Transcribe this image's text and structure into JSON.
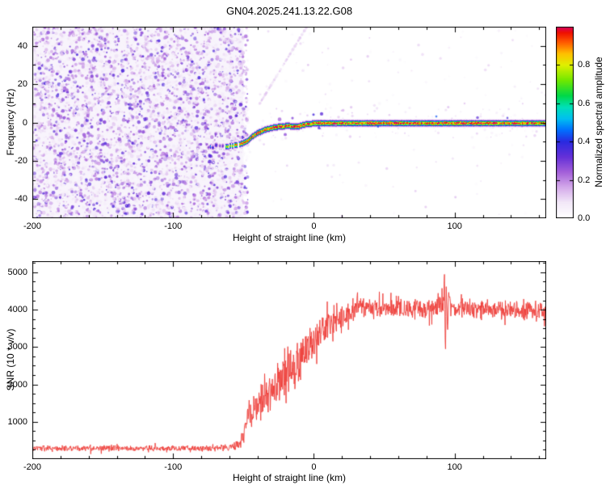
{
  "title": "GN04.2025.241.13.22.G08",
  "chart_data": [
    {
      "type": "heatmap",
      "name": "spectrogram",
      "xlabel": "Height of straight line (km)",
      "ylabel": "Frequency (Hz)",
      "xlim": [
        -200,
        165
      ],
      "ylim": [
        -50,
        50
      ],
      "xticks": [
        -200,
        -100,
        0,
        100
      ],
      "yticks": [
        -40,
        -20,
        0,
        20,
        40
      ],
      "grid": false,
      "background_noise": {
        "description": "dense pale-purple speckle noise filling the panel left of about -50 km",
        "x_range": [
          -200,
          -50
        ],
        "freq_range": [
          -50,
          50
        ],
        "amplitude_range": [
          0.03,
          0.35
        ]
      },
      "signal_trace": {
        "description": "narrow high-amplitude carrier: scattered onset dots near -13 Hz rising to 0 Hz, then flat to right edge; red/yellow core, green-cyan-blue fringe",
        "onset_scatter_x": [
          -78,
          -63
        ],
        "points_columns": [
          "x_km",
          "freq_hz",
          "amp"
        ],
        "points": [
          [
            -78,
            -13,
            0.45
          ],
          [
            -72,
            -12.6,
            0.55
          ],
          [
            -66,
            -12.4,
            0.7
          ],
          [
            -62,
            -12.4,
            0.82
          ],
          [
            -58,
            -12,
            0.88
          ],
          [
            -54,
            -11.4,
            0.92
          ],
          [
            -50,
            -10.4,
            0.95
          ],
          [
            -47,
            -9.2,
            0.96
          ],
          [
            -44,
            -7.2,
            1
          ],
          [
            -41,
            -5.6,
            1
          ],
          [
            -38,
            -4.6,
            1
          ],
          [
            -35,
            -3.6,
            1
          ],
          [
            -31,
            -2.8,
            1
          ],
          [
            -27,
            -2.2,
            1
          ],
          [
            -23,
            -1.8,
            1
          ],
          [
            -19,
            -1.6,
            1
          ],
          [
            -15,
            -1.8,
            1
          ],
          [
            -12,
            -2.1,
            1
          ],
          [
            -9,
            -1.3,
            1
          ],
          [
            -6,
            -0.8,
            1
          ],
          [
            -3,
            -0.5,
            1
          ],
          [
            0,
            -0.3,
            1
          ],
          [
            4,
            -0.1,
            1
          ],
          [
            10,
            0,
            1
          ],
          [
            165,
            0,
            1
          ]
        ]
      },
      "artifact_streak": {
        "x1": -40,
        "freq1": 8,
        "x2": -5,
        "freq2": 50,
        "amp": 0.12
      },
      "colorbar": {
        "label": "Normalized spectral amplitude",
        "range": [
          0,
          1
        ],
        "ticks": [
          0,
          0.2,
          0.4,
          0.6,
          0.8
        ],
        "stops": [
          [
            0.0,
            "#ffffff"
          ],
          [
            0.08,
            "#f2e8f8"
          ],
          [
            0.16,
            "#d4a9ea"
          ],
          [
            0.24,
            "#a35fd9"
          ],
          [
            0.32,
            "#6430d8"
          ],
          [
            0.4,
            "#2a2ae0"
          ],
          [
            0.46,
            "#0070ff"
          ],
          [
            0.52,
            "#00c0f0"
          ],
          [
            0.58,
            "#00e0b8"
          ],
          [
            0.64,
            "#00d848"
          ],
          [
            0.72,
            "#70e800"
          ],
          [
            0.8,
            "#dff000"
          ],
          [
            0.86,
            "#ffc000"
          ],
          [
            0.92,
            "#ff5a00"
          ],
          [
            0.97,
            "#ef1000"
          ],
          [
            1.0,
            "#d8005f"
          ]
        ]
      }
    },
    {
      "type": "line",
      "name": "snr",
      "xlabel": "Height of straight line (km)",
      "ylabel": "SNR (10 * v/v)",
      "xlim": [
        -200,
        165
      ],
      "ylim": [
        0,
        5300
      ],
      "xticks": [
        -200,
        -100,
        0,
        100
      ],
      "yticks": [
        1000,
        2000,
        3000,
        4000,
        5000
      ],
      "line_color": "#ee3f3b",
      "description": "noisy red SNR trace: flat ~300 until -55 km, strong oscillating rise -50..+25 km, plateau ~4000 with spike to ~5050 near +93 km",
      "envelope_columns": [
        "x_km",
        "mean",
        "half_range"
      ],
      "envelope": [
        [
          -200,
          290,
          85
        ],
        [
          -170,
          290,
          85
        ],
        [
          -140,
          295,
          85
        ],
        [
          -110,
          290,
          85
        ],
        [
          -85,
          290,
          85
        ],
        [
          -70,
          295,
          90
        ],
        [
          -62,
          300,
          95
        ],
        [
          -57,
          330,
          110
        ],
        [
          -53,
          420,
          170
        ],
        [
          -50,
          650,
          260
        ],
        [
          -48,
          1050,
          320
        ],
        [
          -46,
          1350,
          360
        ],
        [
          -44,
          1100,
          380
        ],
        [
          -42,
          1450,
          420
        ],
        [
          -40,
          1200,
          450
        ],
        [
          -38,
          1550,
          480
        ],
        [
          -35,
          1850,
          520
        ],
        [
          -32,
          1650,
          560
        ],
        [
          -29,
          2050,
          580
        ],
        [
          -26,
          1850,
          620
        ],
        [
          -23,
          2250,
          620
        ],
        [
          -20,
          2050,
          660
        ],
        [
          -17,
          2450,
          640
        ],
        [
          -14,
          2250,
          680
        ],
        [
          -11,
          2650,
          640
        ],
        [
          -8,
          2800,
          600
        ],
        [
          -5,
          2950,
          560
        ],
        [
          -2,
          3100,
          520
        ],
        [
          2,
          3300,
          470
        ],
        [
          6,
          3450,
          430
        ],
        [
          10,
          3550,
          410
        ],
        [
          14,
          3650,
          390
        ],
        [
          18,
          3750,
          360
        ],
        [
          22,
          3850,
          330
        ],
        [
          27,
          3950,
          300
        ],
        [
          32,
          4050,
          280
        ],
        [
          40,
          4050,
          270
        ],
        [
          48,
          4000,
          270
        ],
        [
          56,
          4050,
          270
        ],
        [
          64,
          4000,
          270
        ],
        [
          72,
          4050,
          275
        ],
        [
          80,
          4000,
          275
        ],
        [
          86,
          4050,
          280
        ],
        [
          90,
          4100,
          300
        ],
        [
          92,
          4300,
          400
        ],
        [
          92.7,
          5050,
          120
        ],
        [
          93.4,
          2750,
          170
        ],
        [
          94.1,
          4650,
          190
        ],
        [
          94.8,
          3300,
          250
        ],
        [
          95.6,
          4300,
          320
        ],
        [
          97,
          4050,
          290
        ],
        [
          103,
          4000,
          275
        ],
        [
          110,
          4050,
          270
        ],
        [
          118,
          3990,
          270
        ],
        [
          126,
          4040,
          270
        ],
        [
          134,
          3970,
          270
        ],
        [
          142,
          4030,
          270
        ],
        [
          150,
          3960,
          270
        ],
        [
          158,
          4010,
          270
        ],
        [
          165,
          3950,
          270
        ]
      ]
    }
  ]
}
